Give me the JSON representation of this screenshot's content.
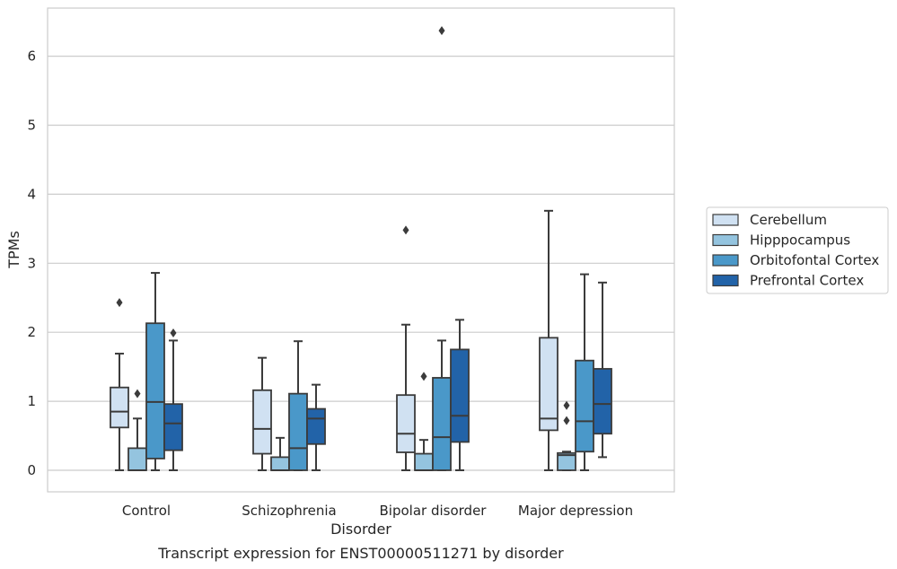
{
  "chart_data": {
    "type": "boxplot",
    "xlabel": "Disorder",
    "ylabel": "TPMs",
    "caption": "Transcript expression for ENST00000511271 by disorder",
    "ylim": [
      -0.3,
      6.7
    ],
    "yticks": [
      0,
      1,
      2,
      3,
      4,
      5,
      6
    ],
    "grid": "horizontal",
    "legend_position": "right",
    "categories": [
      "Control",
      "Schizophrenia",
      "Bipolar disorder",
      "Major depression"
    ],
    "series": [
      {
        "name": "Cerebellum",
        "color": "#d0e1f2",
        "boxes": [
          {
            "whislo": 0.0,
            "q1": 0.62,
            "med": 0.85,
            "q3": 1.2,
            "whishi": 1.69,
            "fliers": [
              2.43
            ]
          },
          {
            "whislo": 0.0,
            "q1": 0.24,
            "med": 0.6,
            "q3": 1.16,
            "whishi": 1.63,
            "fliers": []
          },
          {
            "whislo": 0.0,
            "q1": 0.26,
            "med": 0.53,
            "q3": 1.09,
            "whishi": 2.11,
            "fliers": [
              3.48
            ]
          },
          {
            "whislo": 0.0,
            "q1": 0.58,
            "med": 0.75,
            "q3": 1.92,
            "whishi": 3.76,
            "fliers": []
          }
        ]
      },
      {
        "name": "Hipppocampus",
        "color": "#94c4df",
        "boxes": [
          {
            "whislo": 0.0,
            "q1": 0.0,
            "med": 0.0,
            "q3": 0.32,
            "whishi": 0.75,
            "fliers": [
              1.11
            ]
          },
          {
            "whislo": 0.0,
            "q1": 0.0,
            "med": 0.0,
            "q3": 0.19,
            "whishi": 0.47,
            "fliers": []
          },
          {
            "whislo": 0.0,
            "q1": 0.0,
            "med": 0.0,
            "q3": 0.24,
            "whishi": 0.44,
            "fliers": [
              1.36
            ]
          },
          {
            "whislo": 0.0,
            "q1": 0.0,
            "med": 0.22,
            "q3": 0.25,
            "whishi": 0.27,
            "fliers": [
              0.94,
              0.72
            ]
          }
        ]
      },
      {
        "name": "Orbitofontal Cortex",
        "color": "#4a98c9",
        "boxes": [
          {
            "whislo": 0.0,
            "q1": 0.17,
            "med": 0.99,
            "q3": 2.13,
            "whishi": 2.86,
            "fliers": []
          },
          {
            "whislo": 0.0,
            "q1": 0.0,
            "med": 0.32,
            "q3": 1.11,
            "whishi": 1.87,
            "fliers": []
          },
          {
            "whislo": 0.0,
            "q1": 0.0,
            "med": 0.48,
            "q3": 1.34,
            "whishi": 1.88,
            "fliers": [
              6.37
            ]
          },
          {
            "whislo": 0.0,
            "q1": 0.27,
            "med": 0.71,
            "q3": 1.59,
            "whishi": 2.84,
            "fliers": []
          }
        ]
      },
      {
        "name": "Prefrontal Cortex",
        "color": "#2263a8",
        "boxes": [
          {
            "whislo": 0.0,
            "q1": 0.29,
            "med": 0.68,
            "q3": 0.96,
            "whishi": 1.88,
            "fliers": [
              1.99
            ]
          },
          {
            "whislo": 0.0,
            "q1": 0.38,
            "med": 0.75,
            "q3": 0.89,
            "whishi": 1.24,
            "fliers": []
          },
          {
            "whislo": 0.0,
            "q1": 0.41,
            "med": 0.79,
            "q3": 1.75,
            "whishi": 2.18,
            "fliers": []
          },
          {
            "whislo": 0.19,
            "q1": 0.53,
            "med": 0.96,
            "q3": 1.47,
            "whishi": 2.72,
            "fliers": []
          }
        ]
      }
    ]
  }
}
